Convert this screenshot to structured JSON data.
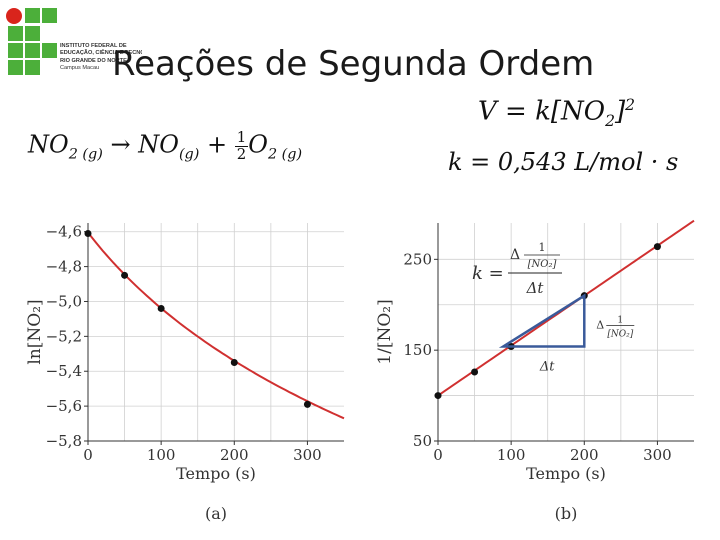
{
  "slide": {
    "title": "Reações de Segunda Ordem",
    "logo_text": [
      "INSTITUTO FEDERAL DE",
      "EDUCAÇÃO, CIÊNCIA E TECNOLOGIA",
      "RIO GRANDE DO NORTE",
      "Campus Macau"
    ],
    "reaction": {
      "reactant": "NO",
      "reactant_sub": "2 (g)",
      "arrow": "→",
      "product1": "NO",
      "product1_sub": "(g)",
      "plus": "+",
      "frac_num": "1",
      "frac_den": "2",
      "product2": "O",
      "product2_sub": "2 (g)"
    },
    "rate_law": {
      "lhs": "V = k[NO",
      "sub": "2",
      "close": "]",
      "sup": "2"
    },
    "k_value": "k = 0,543 L/mol · s"
  },
  "colors": {
    "curve": "#d03030",
    "point": "#111111",
    "triangle": "#3a5a9a",
    "grid": "#d0d0d0",
    "logo_green": "#4caf3a",
    "logo_red": "#d9241c"
  },
  "chart_data": [
    {
      "type": "line",
      "xlabel": "Tempo (s)",
      "ylabel": "ln[NO₂]",
      "caption": "(a)",
      "xlim": [
        0,
        350
      ],
      "ylim": [
        -5.8,
        -4.55
      ],
      "xticks": [
        0,
        100,
        200,
        300
      ],
      "xtick_labels": [
        "0",
        "100",
        "200",
        "300"
      ],
      "yticks": [
        -4.6,
        -4.8,
        -5.0,
        -5.2,
        -5.4,
        -5.6,
        -5.8
      ],
      "ytick_labels": [
        "−4,6",
        "−4,8",
        "−5,0",
        "−5,2",
        "−5,4",
        "−5,6",
        "−5,8"
      ],
      "grid": true,
      "points": {
        "x": [
          0,
          50,
          100,
          200,
          300
        ],
        "y": [
          -4.61,
          -4.85,
          -5.04,
          -5.35,
          -5.59
        ]
      }
    },
    {
      "type": "line",
      "xlabel": "Tempo (s)",
      "ylabel": "1/[NO₂]",
      "caption": "(b)",
      "xlim": [
        0,
        350
      ],
      "ylim": [
        50,
        290
      ],
      "xticks": [
        0,
        100,
        200,
        300
      ],
      "xtick_labels": [
        "0",
        "100",
        "200",
        "300"
      ],
      "yticks": [
        50,
        150,
        250
      ],
      "ytick_labels": [
        "50",
        "150",
        "250"
      ],
      "grid": true,
      "points": {
        "x": [
          0,
          50,
          100,
          200,
          300
        ],
        "y": [
          100,
          126,
          154,
          210,
          264
        ]
      },
      "annotations": {
        "k_label": "k =",
        "delta": "Δ",
        "one": "1",
        "conc": "[NO₂]",
        "delta_t": "Δt"
      }
    }
  ]
}
